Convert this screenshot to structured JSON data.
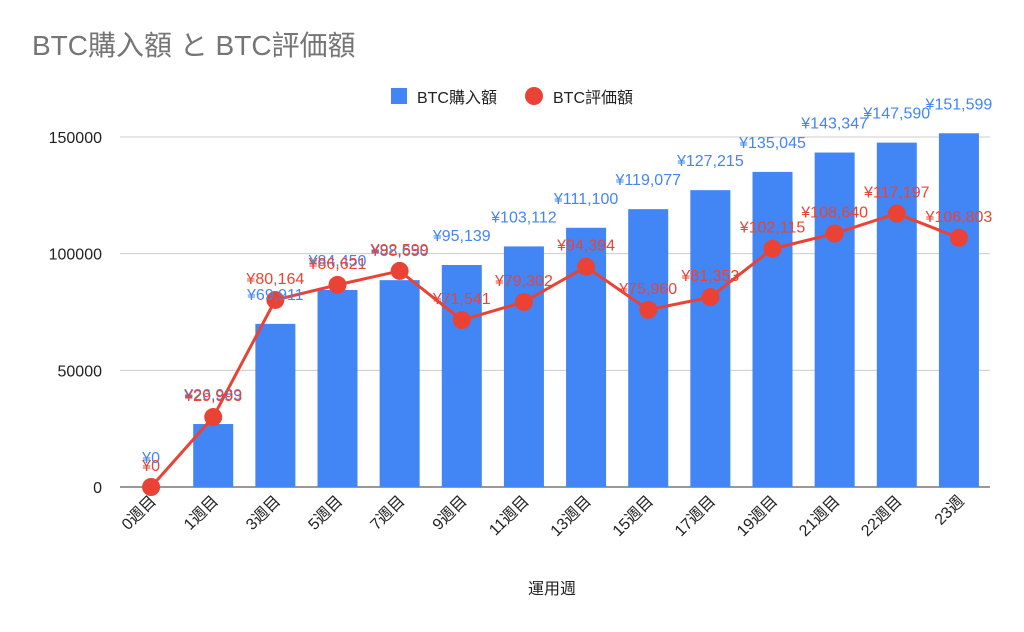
{
  "chart_data": {
    "type": "bar",
    "title": "BTC購入額 と BTC評価額",
    "xlabel": "運用週",
    "ylabel": "",
    "ylim": [
      0,
      150000
    ],
    "yticks": [
      "0",
      "50000",
      "100000",
      "150000"
    ],
    "ytick_values": [
      0,
      50000,
      100000,
      150000
    ],
    "grid": true,
    "legend_position": "top-center",
    "categories": [
      "0週目",
      "1週目",
      "3週目",
      "5週目",
      "7週目",
      "9週目",
      "11週目",
      "13週目",
      "15週目",
      "17週目",
      "19週目",
      "21週目",
      "22週目",
      "23週"
    ],
    "series": [
      {
        "name": "BTC購入額",
        "type": "bar",
        "color": "#4285f4",
        "values": [
          0,
          26989,
          69911,
          84450,
          88650,
          95139,
          103112,
          111100,
          119077,
          127215,
          135045,
          143347,
          147590,
          151599
        ],
        "labels": [
          "¥0",
          "¥26,989",
          "¥69,911",
          "¥84,450",
          "¥88,650",
          "¥95,139",
          "¥103,112",
          "¥111,100",
          "¥119,077",
          "¥127,215",
          "¥135,045",
          "¥143,347",
          "¥147,590",
          "¥151,599"
        ]
      },
      {
        "name": "BTC評価額",
        "type": "line",
        "color": "#ea4335",
        "values": [
          0,
          29993,
          80164,
          86621,
          92599,
          71541,
          79302,
          94394,
          75960,
          81353,
          102115,
          108640,
          117197,
          106803
        ],
        "labels": [
          "¥0",
          "¥29,993",
          "¥80,164",
          "¥86,621",
          "¥92,599",
          "¥71,541",
          "¥79,302",
          "¥94,394",
          "¥75,960",
          "¥81,353",
          "¥102,115",
          "¥108,640",
          "¥117,197",
          "¥106,803"
        ]
      }
    ]
  }
}
